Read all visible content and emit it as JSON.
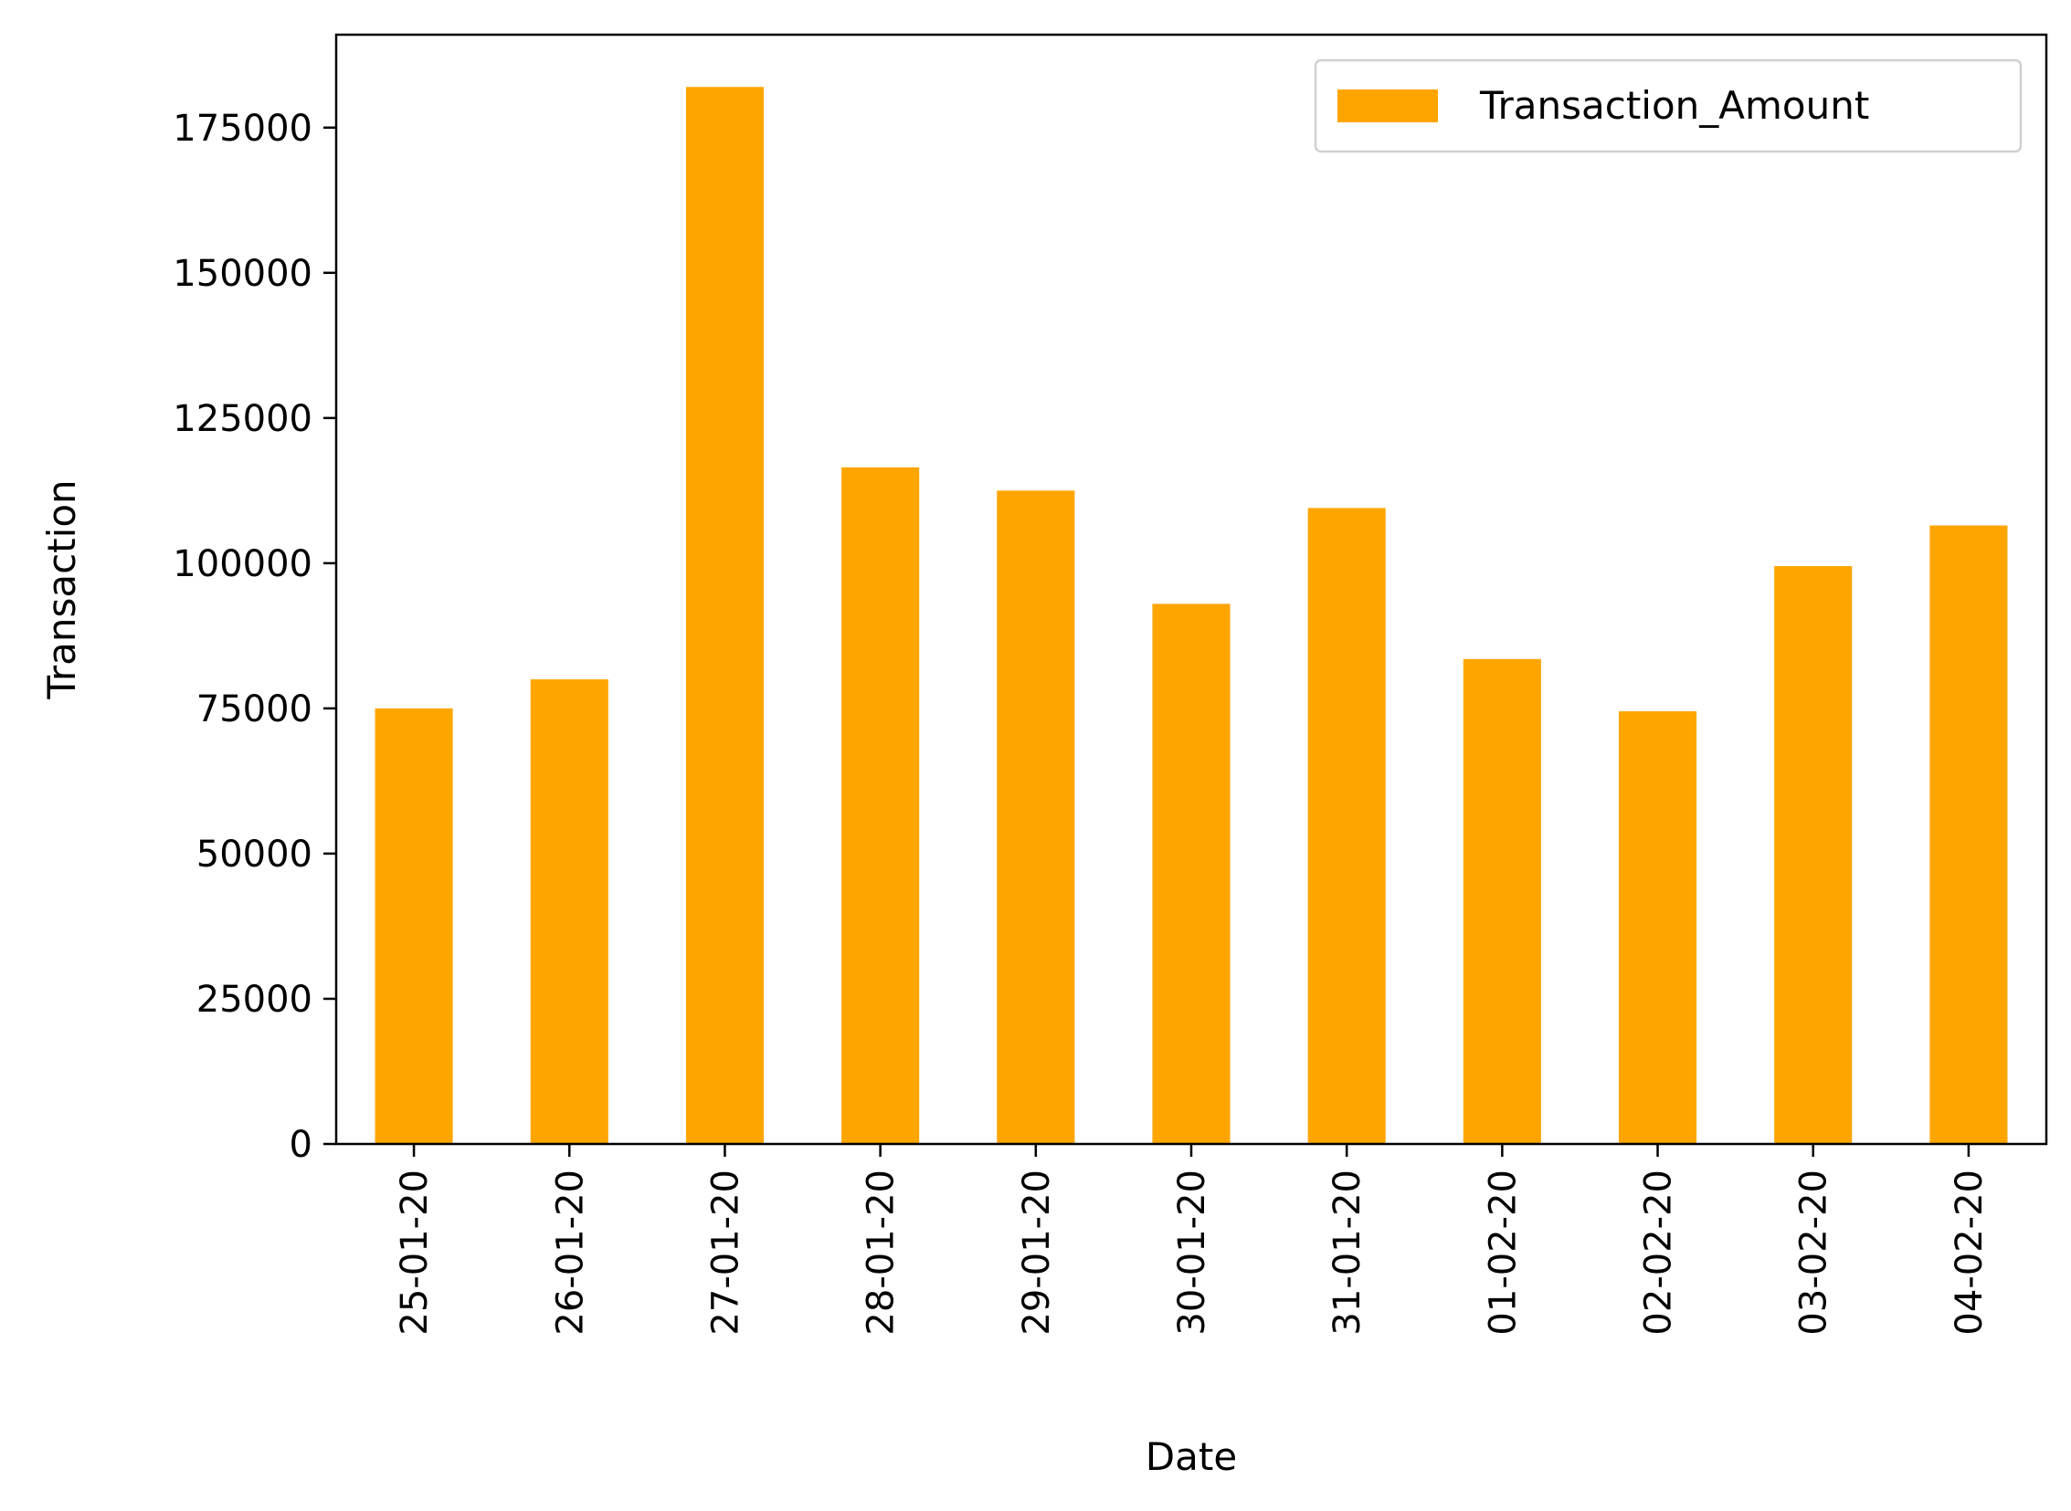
{
  "chart_data": {
    "type": "bar",
    "xlabel": "Date",
    "ylabel": "Transaction",
    "categories": [
      "25-01-20",
      "26-01-20",
      "27-01-20",
      "28-01-20",
      "29-01-20",
      "30-01-20",
      "31-01-20",
      "01-02-20",
      "02-02-20",
      "03-02-20",
      "04-02-20"
    ],
    "series": [
      {
        "name": "Transaction_Amount",
        "color": "#FFA500",
        "values": [
          75000,
          80000,
          182000,
          116500,
          112500,
          93000,
          109500,
          83500,
          74500,
          99500,
          106500
        ]
      }
    ],
    "yticks": [
      0,
      25000,
      50000,
      75000,
      100000,
      125000,
      150000,
      175000
    ],
    "ylim": [
      0,
      191000
    ],
    "grid": false,
    "legend_position": "top-right"
  }
}
